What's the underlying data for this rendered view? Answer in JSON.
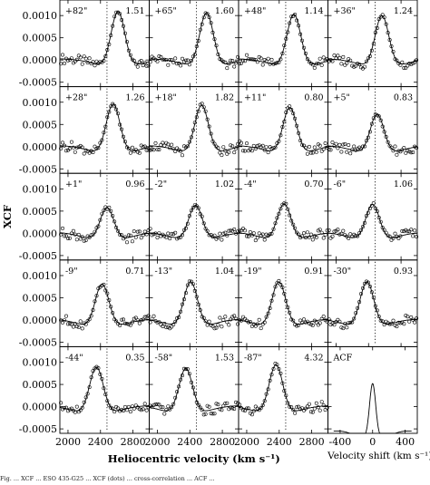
{
  "chart_data": {
    "type": "scatter",
    "layout": {
      "rows": 5,
      "cols": 4
    },
    "ylabel": "XCF",
    "xlabel": "Heliocentric velocity (km s⁻¹)",
    "xlabel_acf": "Velocity shift (km s⁻¹)",
    "xlim": [
      1900,
      3000
    ],
    "xlim_acf": [
      -550,
      550
    ],
    "ylim": [
      -0.0006,
      0.00135
    ],
    "xticks": [
      2000,
      2400,
      2800
    ],
    "xticks_acf": [
      -400,
      0,
      400
    ],
    "yticks": [
      0.001,
      0.0005,
      0.0,
      -0.0005
    ],
    "ytick_labels": [
      "0.0010",
      "0.0005",
      "0.0000",
      "-0.0005"
    ],
    "systemic_velocity": 2480,
    "panels": [
      {
        "offset": "+82\"",
        "value": "1.51",
        "peak_velocity": 2615,
        "peak_height": 0.00128
      },
      {
        "offset": "+65\"",
        "value": "1.60",
        "peak_velocity": 2605,
        "peak_height": 0.00125
      },
      {
        "offset": "+48\"",
        "value": "1.14",
        "peak_velocity": 2580,
        "peak_height": 0.00122
      },
      {
        "offset": "+36\"",
        "value": "1.24",
        "peak_velocity": 2565,
        "peak_height": 0.00119
      },
      {
        "offset": "+28\"",
        "value": "1.26",
        "peak_velocity": 2555,
        "peak_height": 0.00115
      },
      {
        "offset": "+18\"",
        "value": "1.82",
        "peak_velocity": 2545,
        "peak_height": 0.00112
      },
      {
        "offset": "+11\"",
        "value": "0.80",
        "peak_velocity": 2530,
        "peak_height": 0.00107
      },
      {
        "offset": "+5\"",
        "value": "0.83",
        "peak_velocity": 2505,
        "peak_height": 0.00092
      },
      {
        "offset": "+1\"",
        "value": "0.96",
        "peak_velocity": 2480,
        "peak_height": 0.00077
      },
      {
        "offset": "-2\"",
        "value": "1.02",
        "peak_velocity": 2470,
        "peak_height": 0.00082
      },
      {
        "offset": "-4\"",
        "value": "0.70",
        "peak_velocity": 2460,
        "peak_height": 0.00085
      },
      {
        "offset": "-6\"",
        "value": "1.06",
        "peak_velocity": 2450,
        "peak_height": 0.00084
      },
      {
        "offset": "-9\"",
        "value": "0.71",
        "peak_velocity": 2420,
        "peak_height": 0.001
      },
      {
        "offset": "-13\"",
        "value": "1.04",
        "peak_velocity": 2410,
        "peak_height": 0.00105
      },
      {
        "offset": "-19\"",
        "value": "0.91",
        "peak_velocity": 2395,
        "peak_height": 0.00105
      },
      {
        "offset": "-30\"",
        "value": "0.93",
        "peak_velocity": 2380,
        "peak_height": 0.00105
      },
      {
        "offset": "-44\"",
        "value": "0.35",
        "peak_velocity": 2350,
        "peak_height": 0.00108
      },
      {
        "offset": "-58\"",
        "value": "1.53",
        "peak_velocity": 2350,
        "peak_height": 0.00105
      },
      {
        "offset": "-87\"",
        "value": "4.32",
        "peak_velocity": 2360,
        "peak_height": 0.00113
      },
      {
        "offset": "ACF",
        "value": "",
        "peak_velocity": 0,
        "peak_height": 0.00122,
        "is_acf": true
      }
    ]
  },
  "caption": "Fig. ... XCF ... ESO 435-G25 ... XCF (dots) ... cross-correlation ... ACF ..."
}
